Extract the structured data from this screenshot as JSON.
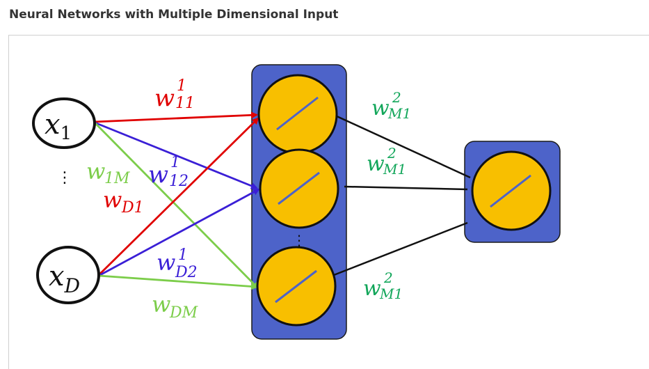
{
  "page": {
    "title": "Neural Networks with Multiple Dimensional Input"
  },
  "colors": {
    "red": "#e00000",
    "blue": "#3a1fd6",
    "green": "#7ccd4a",
    "teal": "#12a65a",
    "layer_fill": "#4d63c9",
    "neuron_fill": "#f8bf00",
    "black": "#111111"
  },
  "inputs": {
    "x1": {
      "main": "x",
      "sub": "1"
    },
    "xD": {
      "main": "x",
      "sub": "D"
    },
    "ellipsis": "⋮"
  },
  "weights": {
    "w11": {
      "main": "w",
      "sup": "1",
      "sub": "11"
    },
    "w1M": {
      "main": "w",
      "sub": "1M"
    },
    "w12": {
      "main": "w",
      "sup": "1",
      "sub": "12"
    },
    "wD1": {
      "main": "w",
      "sub": "D1"
    },
    "wD2": {
      "main": "w",
      "sup": "1",
      "sub": "D2"
    },
    "wDM": {
      "main": "w",
      "sub": "DM"
    },
    "wM1_top": {
      "main": "w",
      "sup": "2",
      "sub": "M1"
    },
    "wM1_mid": {
      "main": "w",
      "sup": "2",
      "sub": "M1"
    },
    "wM1_bot": {
      "main": "w",
      "sup": "2",
      "sub": "M1"
    }
  },
  "hidden_layer": {
    "ellipsis": "⋮",
    "activation_icon": "linear-activation-icon"
  },
  "output_layer": {
    "activation_icon": "linear-activation-icon"
  }
}
